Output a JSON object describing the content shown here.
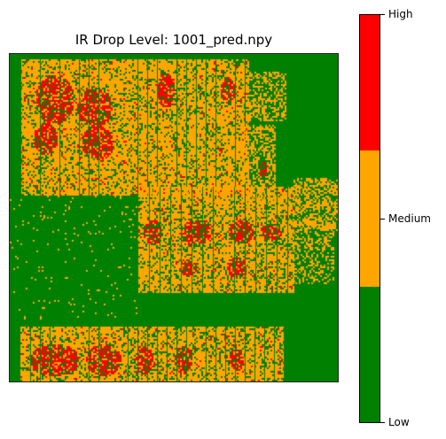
{
  "chart_data": {
    "type": "heatmap",
    "title": "IR Drop Level: 1001_pred.npy",
    "xlabel": "",
    "ylabel": "",
    "axes_visible": false,
    "levels": [
      {
        "name": "Low",
        "color": "#008000"
      },
      {
        "name": "Medium",
        "color": "#ffa500"
      },
      {
        "name": "High",
        "color": "#ff0000"
      }
    ],
    "colorbar": {
      "orientation": "vertical",
      "placement": "right",
      "ticks": [
        "High",
        "Medium",
        "Low"
      ]
    },
    "regions": [
      {
        "label": "top-left hotspot block",
        "level": "High"
      },
      {
        "label": "middle block",
        "level": "Medium"
      },
      {
        "label": "bottom-left block",
        "level": "Medium"
      },
      {
        "label": "left mid strip",
        "level": "Low"
      },
      {
        "label": "right side",
        "level": "Low"
      }
    ]
  }
}
